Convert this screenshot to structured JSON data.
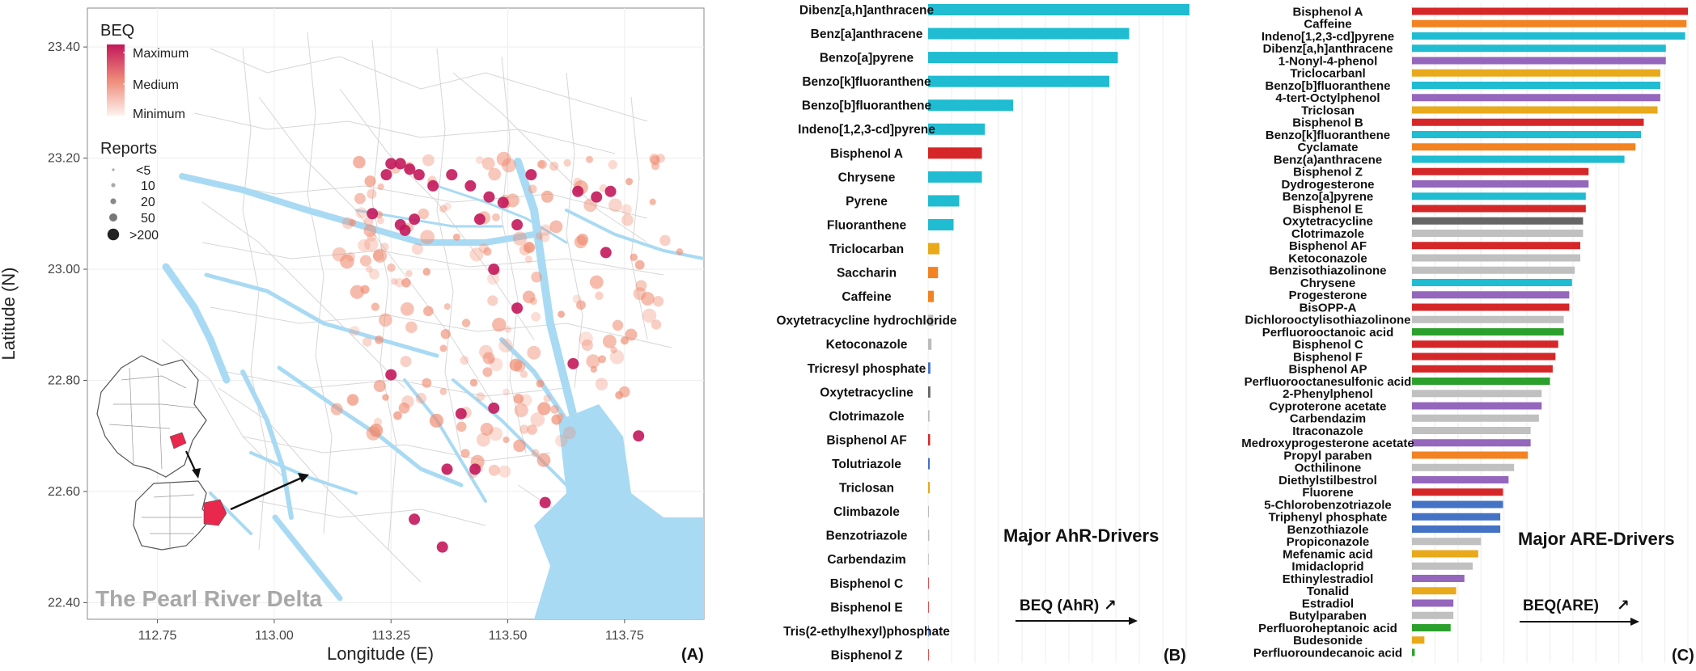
{
  "map": {
    "panel_label": "(A)",
    "overlay_label": "The Pearl River Delta",
    "xlabel": "Longitude (E)",
    "ylabel": "Latitude (N)",
    "xticks": [
      "112.75",
      "113.00",
      "113.25",
      "113.50",
      "113.75"
    ],
    "yticks": [
      "23.40",
      "23.20",
      "23.00",
      "22.80",
      "22.60",
      "22.40"
    ],
    "legend": {
      "color_title": "BEQ",
      "color_labels": [
        "Maximum",
        "Medium",
        "Minimum"
      ],
      "size_title": "Reports",
      "size_labels": [
        "<5",
        "10",
        "20",
        "50",
        ">200"
      ]
    },
    "colors": {
      "water": "#a9daf3",
      "roads": "#d6d6d6",
      "high": "#c2185b",
      "low": "#f4b29a",
      "plot_border": "#888888"
    }
  },
  "chart_data": [
    {
      "type": "scatter",
      "x": [
        113.25,
        113.27,
        113.24,
        113.29,
        113.31,
        113.34,
        113.38,
        113.42,
        113.46,
        113.49,
        113.55,
        113.65,
        113.69,
        113.72,
        113.21,
        113.27,
        113.28,
        113.3,
        113.44,
        113.52,
        113.71,
        113.47,
        113.64,
        113.25,
        113.4,
        113.47,
        113.78,
        113.37,
        113.43,
        113.3,
        113.36,
        113.58,
        113.52
      ],
      "y": [
        23.19,
        23.19,
        23.17,
        23.18,
        23.17,
        23.15,
        23.17,
        23.15,
        23.13,
        23.12,
        23.17,
        23.14,
        23.13,
        23.14,
        23.1,
        23.08,
        23.07,
        23.09,
        23.09,
        23.08,
        23.03,
        23.0,
        22.83,
        22.81,
        22.74,
        22.75,
        22.7,
        22.64,
        22.64,
        22.55,
        22.5,
        22.58,
        22.93
      ],
      "note_fields": "geographic longitude/latitude of high-BEQ sampling sites (approximate)",
      "xlabel": "Longitude (E)",
      "ylabel": "Latitude (N)",
      "xlim": [
        112.6,
        113.92
      ],
      "ylim": [
        22.37,
        23.47
      ]
    },
    {
      "type": "bar",
      "orientation": "horizontal",
      "title": "Major AhR-Drivers",
      "axis_label": "BEQ (AhR)",
      "panel_label": "(B)",
      "categories": [
        "Dibenz[a,h]anthracene",
        "Benz[a]anthracene",
        "Benzo[a]pyrene",
        "Benzo[k]fluoranthene",
        "Benzo[b]fluoranthene",
        "Indeno[1,2,3-cd]pyrene",
        "Bisphenol A",
        "Chrysene",
        "Pyrene",
        "Fluoranthene",
        "Triclocarban",
        "Saccharin",
        "Caffeine",
        "Oxytetracycline hydrochloride",
        "Ketoconazole",
        "Tricresyl phosphate",
        "Oxytetracycline",
        "Clotrimazole",
        "Bisphenol AF",
        "Tolutriazole",
        "Triclosan",
        "Climbazole",
        "Benzotriazole",
        "Carbendazim",
        "Bisphenol C",
        "Bisphenol E",
        "Tris(2-ethylhexyl)phosphate",
        "Bisphenol Z"
      ],
      "values": [
        100,
        71,
        67,
        64,
        30,
        20,
        19,
        19,
        11,
        9,
        4,
        3.5,
        2,
        1.8,
        1.2,
        0.8,
        0.8,
        0.5,
        0.7,
        0.6,
        0.6,
        0.3,
        0.4,
        0.1,
        0.1,
        0.1,
        0.1,
        0.1
      ],
      "colors": [
        "#1fbcd2",
        "#1fbcd2",
        "#1fbcd2",
        "#1fbcd2",
        "#1fbcd2",
        "#1fbcd2",
        "#d62728",
        "#1fbcd2",
        "#1fbcd2",
        "#1fbcd2",
        "#e8a91b",
        "#f28322",
        "#f28322",
        "#bcbcbc",
        "#bcbcbc",
        "#4472c4",
        "#666666",
        "#bcbcbc",
        "#d62728",
        "#4472c4",
        "#e8a91b",
        "#bcbcbc",
        "#bcbcbc",
        "#bcbcbc",
        "#d62728",
        "#d62728",
        "#4472c4",
        "#d62728"
      ],
      "xlim": [
        0,
        100
      ],
      "grid": true
    },
    {
      "type": "bar",
      "orientation": "horizontal",
      "title": "Major ARE-Drivers",
      "axis_label": "BEQ(ARE)",
      "panel_label": "(C)",
      "categories": [
        "Bisphenol A",
        "Caffeine",
        "Indeno[1,2,3-cd]pyrene",
        "Dibenz[a,h]anthracene",
        "1-Nonyl-4-phenol",
        "Triclocarbanl",
        "Benzo[b]fluoranthene",
        "4-tert-Octylphenol",
        "Triclosan",
        "Bisphenol B",
        "Benzo[k]fluoranthene",
        "Cyclamate",
        "Benz(a)anthracene",
        "Bisphenol Z",
        "Dydrogesterone",
        "Benzo[a]pyrene",
        "Bisphenol E",
        "Oxytetracycline",
        "Clotrimazole",
        "Bisphenol AF",
        "Ketoconazole",
        "Benzisothiazolinone",
        "Chrysene",
        "Progesterone",
        "BisOPP-A",
        "Dichlorooctylisothiazolinone",
        "Perfluorooctanoic acid",
        "Bisphenol C",
        "Bisphenol F",
        "Bisphenol AP",
        "Perfluorooctanesulfonic acid",
        "2-Phenylphenol",
        "Cyproterone acetate",
        "Carbendazim",
        "Itraconazole",
        "Medroxyprogesterone acetate",
        "Propyl paraben",
        "Octhilinone",
        "Diethylstilbestrol",
        "Fluorene",
        "5-Chlorobenzotriazole",
        "Triphenyl phosphate",
        "Benzothiazole",
        "Propiconazole",
        "Mefenamic acid",
        "Imidacloprid",
        "Ethinylestradiol",
        "Tonalid",
        "Estradiol",
        "Butylparaben",
        "Perfluoroheptanoic acid",
        "Budesonide",
        "Perfluoroundecanoic acid"
      ],
      "values": [
        100,
        99.5,
        99,
        92,
        92,
        90,
        90,
        90,
        89,
        84,
        83,
        81,
        77,
        64,
        64,
        63,
        63,
        62,
        62,
        61,
        61,
        59,
        58,
        57,
        57,
        55,
        55,
        53,
        52,
        51,
        50,
        47,
        47,
        46,
        43,
        43,
        42,
        37,
        35,
        33,
        33,
        32,
        32,
        25,
        24,
        22,
        19,
        16,
        15,
        15,
        14,
        4.5,
        1
      ],
      "colors": [
        "#d62728",
        "#f28322",
        "#1fbcd2",
        "#1fbcd2",
        "#9467bd",
        "#e8a91b",
        "#1fbcd2",
        "#9467bd",
        "#e8a91b",
        "#d62728",
        "#1fbcd2",
        "#f28322",
        "#1fbcd2",
        "#d62728",
        "#9467bd",
        "#1fbcd2",
        "#d62728",
        "#666666",
        "#c0c0c0",
        "#d62728",
        "#c0c0c0",
        "#c0c0c0",
        "#1fbcd2",
        "#9467bd",
        "#d62728",
        "#c0c0c0",
        "#2ca02c",
        "#d62728",
        "#d62728",
        "#d62728",
        "#2ca02c",
        "#c0c0c0",
        "#9467bd",
        "#c0c0c0",
        "#c0c0c0",
        "#9467bd",
        "#f28322",
        "#c0c0c0",
        "#9467bd",
        "#d62728",
        "#4472c4",
        "#4472c4",
        "#4472c4",
        "#c0c0c0",
        "#e8a91b",
        "#c0c0c0",
        "#9467bd",
        "#e8a91b",
        "#9467bd",
        "#c0c0c0",
        "#2ca02c",
        "#e8a91b",
        "#2ca02c"
      ],
      "xlim": [
        0,
        100
      ],
      "grid": true
    }
  ]
}
